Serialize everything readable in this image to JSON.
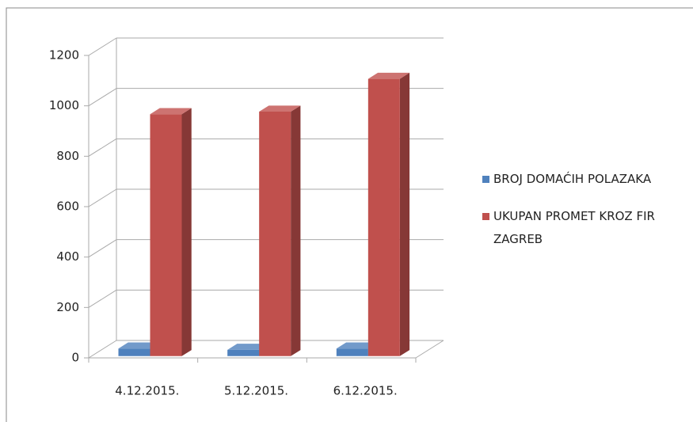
{
  "chart_data": {
    "type": "bar3d",
    "categories": [
      "4.12.2015.",
      "5.12.2015.",
      "6.12.2015."
    ],
    "series": [
      {
        "name": "BROJ DOMAĆIH POLAZAKA",
        "color": "#4f81bd",
        "values": [
          30,
          25,
          30
        ]
      },
      {
        "name": "UKUPAN PROMET KROZ FIR ZAGREB",
        "color": "#c0504d",
        "values": [
          960,
          970,
          1100
        ]
      }
    ],
    "ylim": [
      0,
      1200
    ],
    "yticks": [
      0,
      200,
      400,
      600,
      800,
      1000,
      1200
    ],
    "grid": true,
    "legend": "right"
  }
}
